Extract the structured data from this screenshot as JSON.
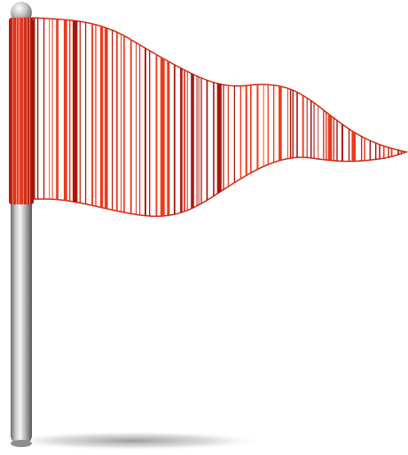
{
  "flag_icon": {
    "icon": "barcode-flag-icon",
    "colors": {
      "flag_stripe_light": "#ee3a1c",
      "flag_stripe_dark": "#a8180e",
      "flag_background": "#ffffff",
      "pole_light": "#e9e9e9",
      "pole_mid": "#b4b4b4",
      "pole_dark": "#5d5d5d",
      "shadow": "#8a8a8a"
    }
  }
}
